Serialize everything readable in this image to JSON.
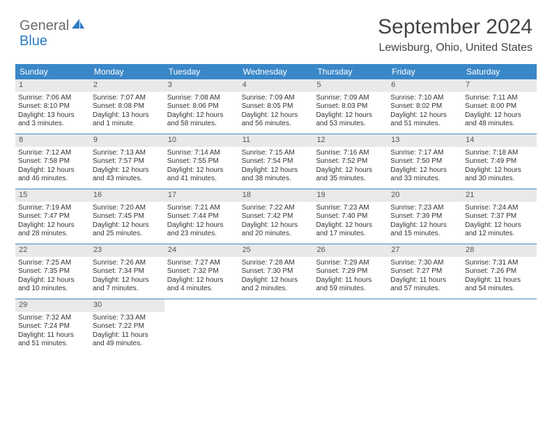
{
  "logo": {
    "part1": "General",
    "part2": "Blue"
  },
  "title": "September 2024",
  "location": "Lewisburg, Ohio, United States",
  "colors": {
    "header_bg": "#3a87c8",
    "daynum_bg": "#e9e9e9",
    "logo_gray": "#6b6b6b",
    "logo_blue": "#2a7bc4",
    "text": "#333333",
    "border": "#3a87c8"
  },
  "day_headers": [
    "Sunday",
    "Monday",
    "Tuesday",
    "Wednesday",
    "Thursday",
    "Friday",
    "Saturday"
  ],
  "weeks": [
    [
      {
        "n": "1",
        "sr": "Sunrise: 7:06 AM",
        "ss": "Sunset: 8:10 PM",
        "dl": "Daylight: 13 hours and 3 minutes."
      },
      {
        "n": "2",
        "sr": "Sunrise: 7:07 AM",
        "ss": "Sunset: 8:08 PM",
        "dl": "Daylight: 13 hours and 1 minute."
      },
      {
        "n": "3",
        "sr": "Sunrise: 7:08 AM",
        "ss": "Sunset: 8:06 PM",
        "dl": "Daylight: 12 hours and 58 minutes."
      },
      {
        "n": "4",
        "sr": "Sunrise: 7:09 AM",
        "ss": "Sunset: 8:05 PM",
        "dl": "Daylight: 12 hours and 56 minutes."
      },
      {
        "n": "5",
        "sr": "Sunrise: 7:09 AM",
        "ss": "Sunset: 8:03 PM",
        "dl": "Daylight: 12 hours and 53 minutes."
      },
      {
        "n": "6",
        "sr": "Sunrise: 7:10 AM",
        "ss": "Sunset: 8:02 PM",
        "dl": "Daylight: 12 hours and 51 minutes."
      },
      {
        "n": "7",
        "sr": "Sunrise: 7:11 AM",
        "ss": "Sunset: 8:00 PM",
        "dl": "Daylight: 12 hours and 48 minutes."
      }
    ],
    [
      {
        "n": "8",
        "sr": "Sunrise: 7:12 AM",
        "ss": "Sunset: 7:58 PM",
        "dl": "Daylight: 12 hours and 46 minutes."
      },
      {
        "n": "9",
        "sr": "Sunrise: 7:13 AM",
        "ss": "Sunset: 7:57 PM",
        "dl": "Daylight: 12 hours and 43 minutes."
      },
      {
        "n": "10",
        "sr": "Sunrise: 7:14 AM",
        "ss": "Sunset: 7:55 PM",
        "dl": "Daylight: 12 hours and 41 minutes."
      },
      {
        "n": "11",
        "sr": "Sunrise: 7:15 AM",
        "ss": "Sunset: 7:54 PM",
        "dl": "Daylight: 12 hours and 38 minutes."
      },
      {
        "n": "12",
        "sr": "Sunrise: 7:16 AM",
        "ss": "Sunset: 7:52 PM",
        "dl": "Daylight: 12 hours and 35 minutes."
      },
      {
        "n": "13",
        "sr": "Sunrise: 7:17 AM",
        "ss": "Sunset: 7:50 PM",
        "dl": "Daylight: 12 hours and 33 minutes."
      },
      {
        "n": "14",
        "sr": "Sunrise: 7:18 AM",
        "ss": "Sunset: 7:49 PM",
        "dl": "Daylight: 12 hours and 30 minutes."
      }
    ],
    [
      {
        "n": "15",
        "sr": "Sunrise: 7:19 AM",
        "ss": "Sunset: 7:47 PM",
        "dl": "Daylight: 12 hours and 28 minutes."
      },
      {
        "n": "16",
        "sr": "Sunrise: 7:20 AM",
        "ss": "Sunset: 7:45 PM",
        "dl": "Daylight: 12 hours and 25 minutes."
      },
      {
        "n": "17",
        "sr": "Sunrise: 7:21 AM",
        "ss": "Sunset: 7:44 PM",
        "dl": "Daylight: 12 hours and 23 minutes."
      },
      {
        "n": "18",
        "sr": "Sunrise: 7:22 AM",
        "ss": "Sunset: 7:42 PM",
        "dl": "Daylight: 12 hours and 20 minutes."
      },
      {
        "n": "19",
        "sr": "Sunrise: 7:23 AM",
        "ss": "Sunset: 7:40 PM",
        "dl": "Daylight: 12 hours and 17 minutes."
      },
      {
        "n": "20",
        "sr": "Sunrise: 7:23 AM",
        "ss": "Sunset: 7:39 PM",
        "dl": "Daylight: 12 hours and 15 minutes."
      },
      {
        "n": "21",
        "sr": "Sunrise: 7:24 AM",
        "ss": "Sunset: 7:37 PM",
        "dl": "Daylight: 12 hours and 12 minutes."
      }
    ],
    [
      {
        "n": "22",
        "sr": "Sunrise: 7:25 AM",
        "ss": "Sunset: 7:35 PM",
        "dl": "Daylight: 12 hours and 10 minutes."
      },
      {
        "n": "23",
        "sr": "Sunrise: 7:26 AM",
        "ss": "Sunset: 7:34 PM",
        "dl": "Daylight: 12 hours and 7 minutes."
      },
      {
        "n": "24",
        "sr": "Sunrise: 7:27 AM",
        "ss": "Sunset: 7:32 PM",
        "dl": "Daylight: 12 hours and 4 minutes."
      },
      {
        "n": "25",
        "sr": "Sunrise: 7:28 AM",
        "ss": "Sunset: 7:30 PM",
        "dl": "Daylight: 12 hours and 2 minutes."
      },
      {
        "n": "26",
        "sr": "Sunrise: 7:29 AM",
        "ss": "Sunset: 7:29 PM",
        "dl": "Daylight: 11 hours and 59 minutes."
      },
      {
        "n": "27",
        "sr": "Sunrise: 7:30 AM",
        "ss": "Sunset: 7:27 PM",
        "dl": "Daylight: 11 hours and 57 minutes."
      },
      {
        "n": "28",
        "sr": "Sunrise: 7:31 AM",
        "ss": "Sunset: 7:26 PM",
        "dl": "Daylight: 11 hours and 54 minutes."
      }
    ],
    [
      {
        "n": "29",
        "sr": "Sunrise: 7:32 AM",
        "ss": "Sunset: 7:24 PM",
        "dl": "Daylight: 11 hours and 51 minutes."
      },
      {
        "n": "30",
        "sr": "Sunrise: 7:33 AM",
        "ss": "Sunset: 7:22 PM",
        "dl": "Daylight: 11 hours and 49 minutes."
      },
      null,
      null,
      null,
      null,
      null
    ]
  ]
}
